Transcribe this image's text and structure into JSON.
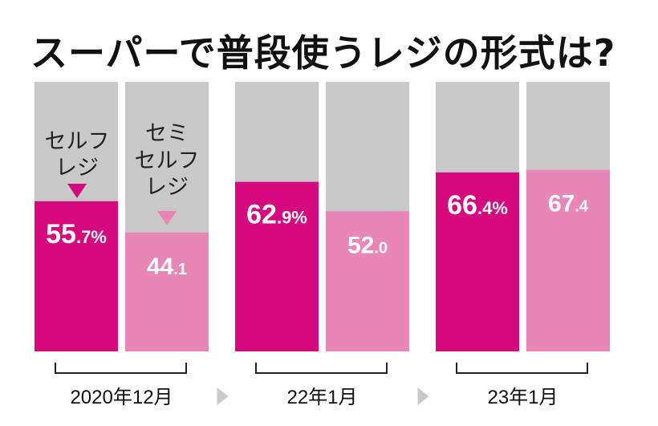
{
  "title": "スーパーで普段使うレジの形式は?",
  "colors": {
    "self": "#d6087e",
    "semi": "#e986b8",
    "background_bar": "#c9c9c9",
    "arrow": "#c9c9c9"
  },
  "legend": {
    "self_line1": "セルフ",
    "self_line2": "レジ",
    "semi_line1": "セミ",
    "semi_line2": "セルフ",
    "semi_line3": "レジ"
  },
  "chart_data": {
    "type": "bar",
    "title": "スーパーで普段使うレジの形式は?",
    "categories": [
      "2020年12月",
      "22年1月",
      "23年1月"
    ],
    "ylim": [
      0,
      100
    ],
    "unit": "%",
    "series": [
      {
        "name": "セルフレジ",
        "values": [
          55.7,
          62.9,
          66.4
        ],
        "labels": [
          "55.7%",
          "62.9%",
          "66.4%"
        ]
      },
      {
        "name": "セミセルフレジ",
        "values": [
          44.1,
          52.0,
          67.4
        ],
        "labels": [
          "44.1",
          "52.0",
          "67.4"
        ]
      }
    ]
  }
}
